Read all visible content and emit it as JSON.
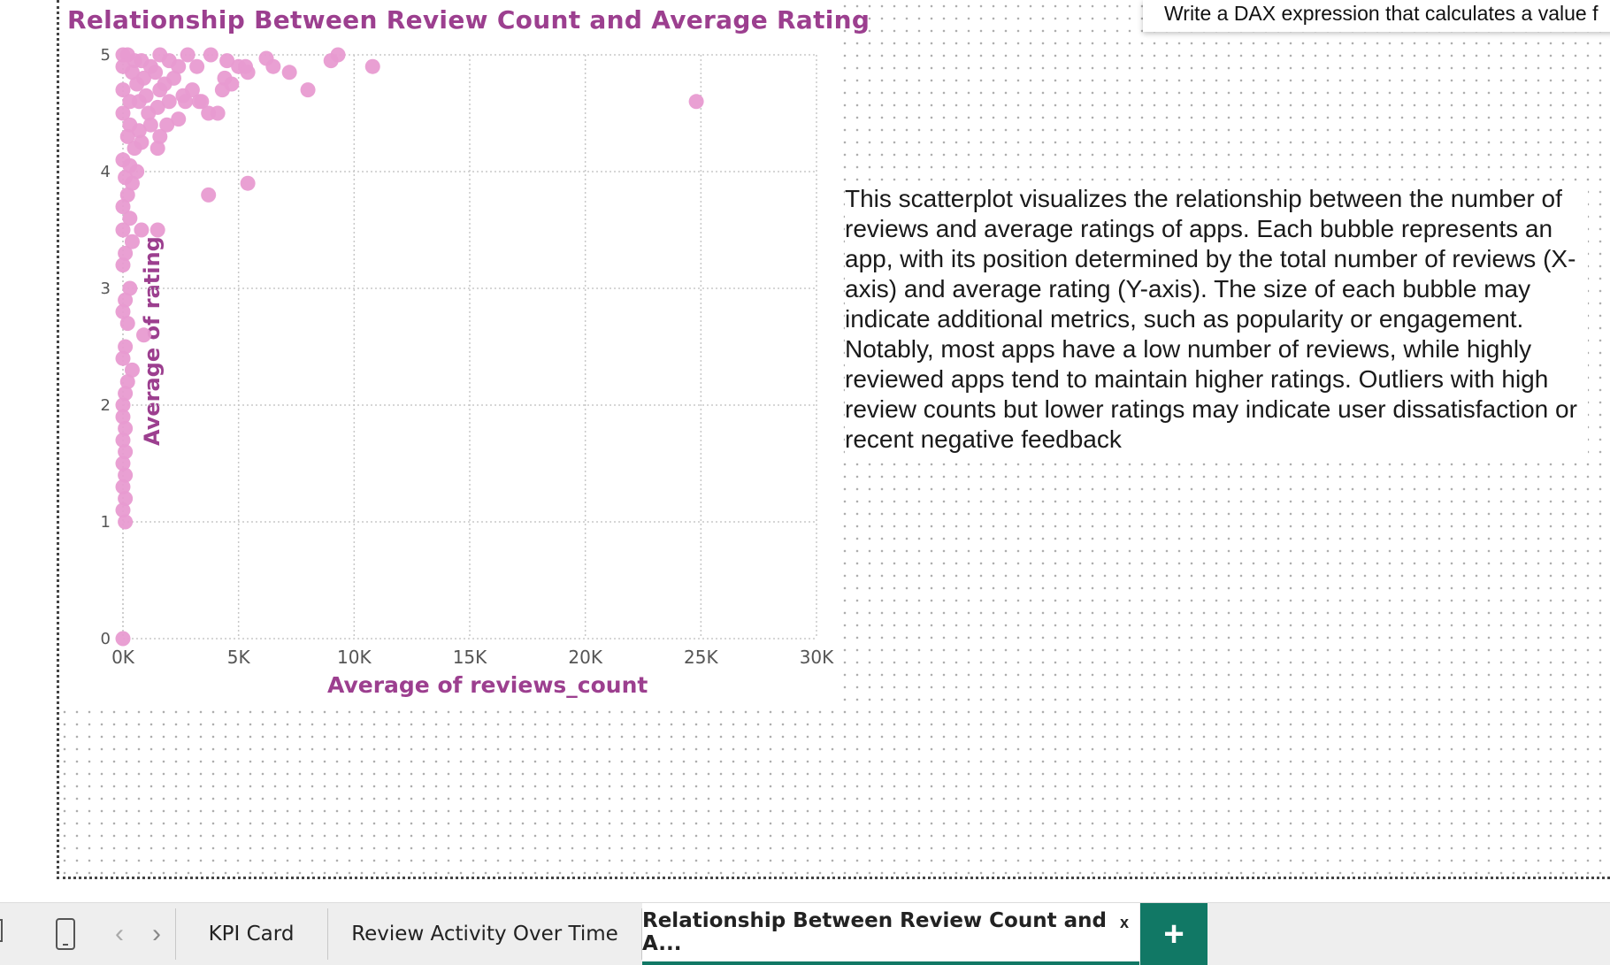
{
  "tooltip": {
    "text": "Write a DAX expression that calculates a value f"
  },
  "chart_data": {
    "type": "scatter",
    "title": "Relationship Between Review Count and Average Rating",
    "xlabel": "Average of reviews_count",
    "ylabel": "Average of rating",
    "xlim": [
      0,
      30000
    ],
    "ylim": [
      0,
      5
    ],
    "x_ticks": [
      "0K",
      "5K",
      "10K",
      "15K",
      "20K",
      "25K",
      "30K"
    ],
    "y_ticks": [
      "0",
      "1",
      "2",
      "3",
      "4",
      "5"
    ],
    "grid": true,
    "color": "#e89bd1",
    "points": [
      [
        0,
        5
      ],
      [
        200,
        5
      ],
      [
        500,
        4.95
      ],
      [
        800,
        4.95
      ],
      [
        1200,
        4.9
      ],
      [
        1600,
        5
      ],
      [
        2000,
        4.95
      ],
      [
        2400,
        4.9
      ],
      [
        2800,
        5
      ],
      [
        3200,
        4.9
      ],
      [
        3800,
        5
      ],
      [
        4500,
        4.95
      ],
      [
        5300,
        4.9
      ],
      [
        6500,
        4.9
      ],
      [
        7200,
        4.85
      ],
      [
        8000,
        4.7
      ],
      [
        9000,
        4.95
      ],
      [
        9300,
        5
      ],
      [
        10800,
        4.9
      ],
      [
        6200,
        4.97
      ],
      [
        5000,
        4.9
      ],
      [
        0,
        4.9
      ],
      [
        400,
        4.85
      ],
      [
        900,
        4.8
      ],
      [
        1400,
        4.85
      ],
      [
        1800,
        4.75
      ],
      [
        2200,
        4.8
      ],
      [
        2600,
        4.65
      ],
      [
        3000,
        4.7
      ],
      [
        3400,
        4.6
      ],
      [
        3700,
        4.5
      ],
      [
        4100,
        4.5
      ],
      [
        4300,
        4.7
      ],
      [
        4400,
        4.8
      ],
      [
        4700,
        4.75
      ],
      [
        5400,
        4.85
      ],
      [
        0,
        4.7
      ],
      [
        300,
        4.6
      ],
      [
        700,
        4.6
      ],
      [
        1100,
        4.5
      ],
      [
        1500,
        4.55
      ],
      [
        1900,
        4.4
      ],
      [
        2000,
        4.6
      ],
      [
        2400,
        4.45
      ],
      [
        2700,
        4.6
      ],
      [
        3300,
        4.6
      ],
      [
        1600,
        4.7
      ],
      [
        1000,
        4.65
      ],
      [
        600,
        4.75
      ],
      [
        0,
        4.5
      ],
      [
        300,
        4.4
      ],
      [
        700,
        4.35
      ],
      [
        1200,
        4.4
      ],
      [
        1600,
        4.3
      ],
      [
        200,
        4.3
      ],
      [
        500,
        4.2
      ],
      [
        800,
        4.25
      ],
      [
        1500,
        4.2
      ],
      [
        0,
        4.1
      ],
      [
        300,
        4.05
      ],
      [
        600,
        4.0
      ],
      [
        100,
        3.95
      ],
      [
        400,
        3.9
      ],
      [
        200,
        3.8
      ],
      [
        0,
        3.7
      ],
      [
        300,
        3.6
      ],
      [
        0,
        3.5
      ],
      [
        800,
        3.5
      ],
      [
        1500,
        3.5
      ],
      [
        400,
        3.4
      ],
      [
        100,
        3.3
      ],
      [
        0,
        3.2
      ],
      [
        300,
        3.0
      ],
      [
        100,
        2.9
      ],
      [
        0,
        2.8
      ],
      [
        200,
        2.7
      ],
      [
        900,
        2.6
      ],
      [
        100,
        2.5
      ],
      [
        0,
        2.4
      ],
      [
        400,
        2.3
      ],
      [
        200,
        2.2
      ],
      [
        100,
        2.1
      ],
      [
        0,
        2.0
      ],
      [
        0,
        1.9
      ],
      [
        100,
        1.8
      ],
      [
        0,
        1.7
      ],
      [
        100,
        1.6
      ],
      [
        0,
        1.5
      ],
      [
        100,
        1.4
      ],
      [
        0,
        1.3
      ],
      [
        100,
        1.2
      ],
      [
        0,
        1.1
      ],
      [
        100,
        1.0
      ],
      [
        0,
        0
      ],
      [
        24800,
        4.6
      ],
      [
        5400,
        3.9
      ],
      [
        3700,
        3.8
      ]
    ]
  },
  "description": "This scatterplot visualizes the relationship between the number of reviews and average ratings of apps. Each bubble represents an app, with its position determined by the total number of reviews (X-axis) and average rating (Y-axis). The size of each bubble may indicate additional metrics, such as popularity or engagement. Notably, most apps have a low number of reviews, while highly reviewed apps tend to maintain higher ratings. Outliers with high review counts but lower ratings may indicate user dissatisfaction or recent negative feedback",
  "tabs": [
    {
      "label": "KPI Card",
      "active": false
    },
    {
      "label": "Review Activity Over Time",
      "active": false
    },
    {
      "label": "Relationship Between Review Count and A...",
      "active": true
    }
  ],
  "tab_close": "x",
  "add_tab": "+",
  "nav": {
    "prev": "‹",
    "next": "›"
  }
}
